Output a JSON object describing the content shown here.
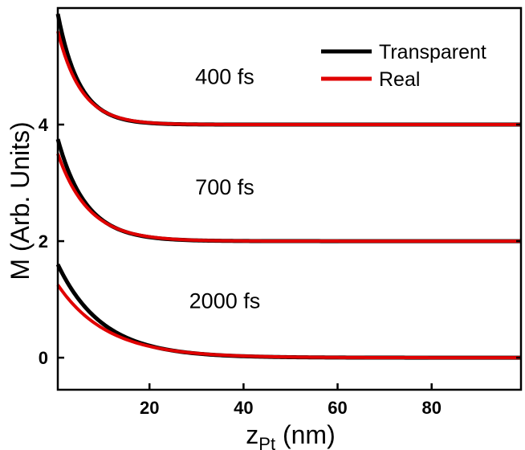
{
  "chart_data": {
    "type": "line",
    "title": "",
    "xlabel": "z",
    "xlabel_sub": "Pt",
    "xlabel_unit": " (nm)",
    "ylabel": "M (Arb. Units)",
    "xlim": [
      0.5,
      99
    ],
    "ylim": [
      -0.55,
      6.0
    ],
    "x_ticks": [
      20,
      40,
      60,
      80
    ],
    "y_ticks": [
      0,
      2,
      4
    ],
    "x_tick_labels": [
      "20",
      "40",
      "60",
      "80"
    ],
    "y_tick_labels": [
      "0",
      "2",
      "4"
    ],
    "grid": false,
    "legend_position": "top-right",
    "annotations": [
      {
        "text": "400 fs",
        "x": 36,
        "y": 4.7
      },
      {
        "text": "700 fs",
        "x": 36,
        "y": 2.8
      },
      {
        "text": "2000 fs",
        "x": 36,
        "y": 0.85
      }
    ],
    "series": [
      {
        "name": "Transparent",
        "color": "#000000",
        "curves": [
          {
            "offset": 4,
            "amp": 1.9,
            "tau": 4.6
          },
          {
            "offset": 2,
            "amp": 1.75,
            "tau": 6.0
          },
          {
            "offset": 0,
            "amp": 1.6,
            "tau": 9.5
          }
        ]
      },
      {
        "name": "Real",
        "color": "#e00000",
        "curves": [
          {
            "offset": 4,
            "amp": 1.6,
            "tau": 5.0
          },
          {
            "offset": 2,
            "amp": 1.5,
            "tau": 6.5
          },
          {
            "offset": 0,
            "amp": 1.25,
            "tau": 10.5
          }
        ]
      }
    ]
  }
}
